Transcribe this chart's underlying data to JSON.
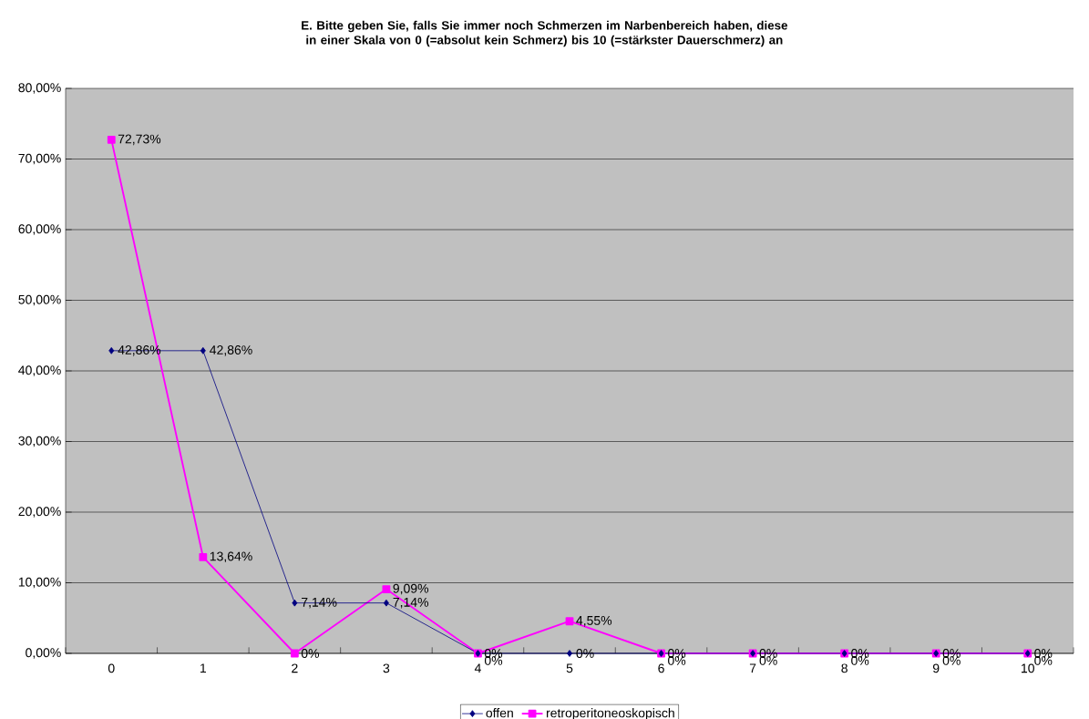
{
  "chart_data": {
    "type": "line",
    "title": "E. Bitte geben Sie, falls Sie immer noch Schmerzen im Narbenbereich haben, diese in einer Skala von 0 (=absolut kein Schmerz) bis 10 (=stärkster Dauerschmerz) an",
    "categories": [
      "0",
      "1",
      "2",
      "3",
      "4",
      "5",
      "6",
      "7",
      "8",
      "9",
      "10"
    ],
    "series": [
      {
        "name": "offen",
        "color": "#000080",
        "marker": "diamond",
        "values": [
          42.86,
          42.86,
          7.14,
          7.14,
          0,
          0,
          0,
          0,
          0,
          0,
          0
        ],
        "value_labels": [
          "42,86%",
          "42,86%",
          "7,14%",
          "7,14%",
          "0%",
          "0%",
          "0%",
          "0%",
          "0%",
          "0%",
          "0%"
        ]
      },
      {
        "name": "retroperitoneoskopisch",
        "color": "#ff00ff",
        "marker": "square",
        "values": [
          72.73,
          13.64,
          0,
          9.09,
          0,
          4.55,
          0,
          0,
          0,
          0,
          0
        ],
        "value_labels": [
          "72,73%",
          "13,64%",
          "0%",
          "9,09%",
          "0%",
          "4,55%",
          "0%",
          "0%",
          "0%",
          "0%",
          "0%"
        ]
      }
    ],
    "ylim": [
      0,
      80
    ],
    "yticks": [
      {
        "value": 0,
        "label": "0,00%"
      },
      {
        "value": 10,
        "label": "10,00%"
      },
      {
        "value": 20,
        "label": "20,00%"
      },
      {
        "value": 30,
        "label": "30,00%"
      },
      {
        "value": 40,
        "label": "40,00%"
      },
      {
        "value": 50,
        "label": "50,00%"
      },
      {
        "value": 60,
        "label": "60,00%"
      },
      {
        "value": 70,
        "label": "70,00%"
      },
      {
        "value": 80,
        "label": "80,00%"
      }
    ],
    "grid": "y",
    "legend": "bottom",
    "line_style": "solid"
  }
}
